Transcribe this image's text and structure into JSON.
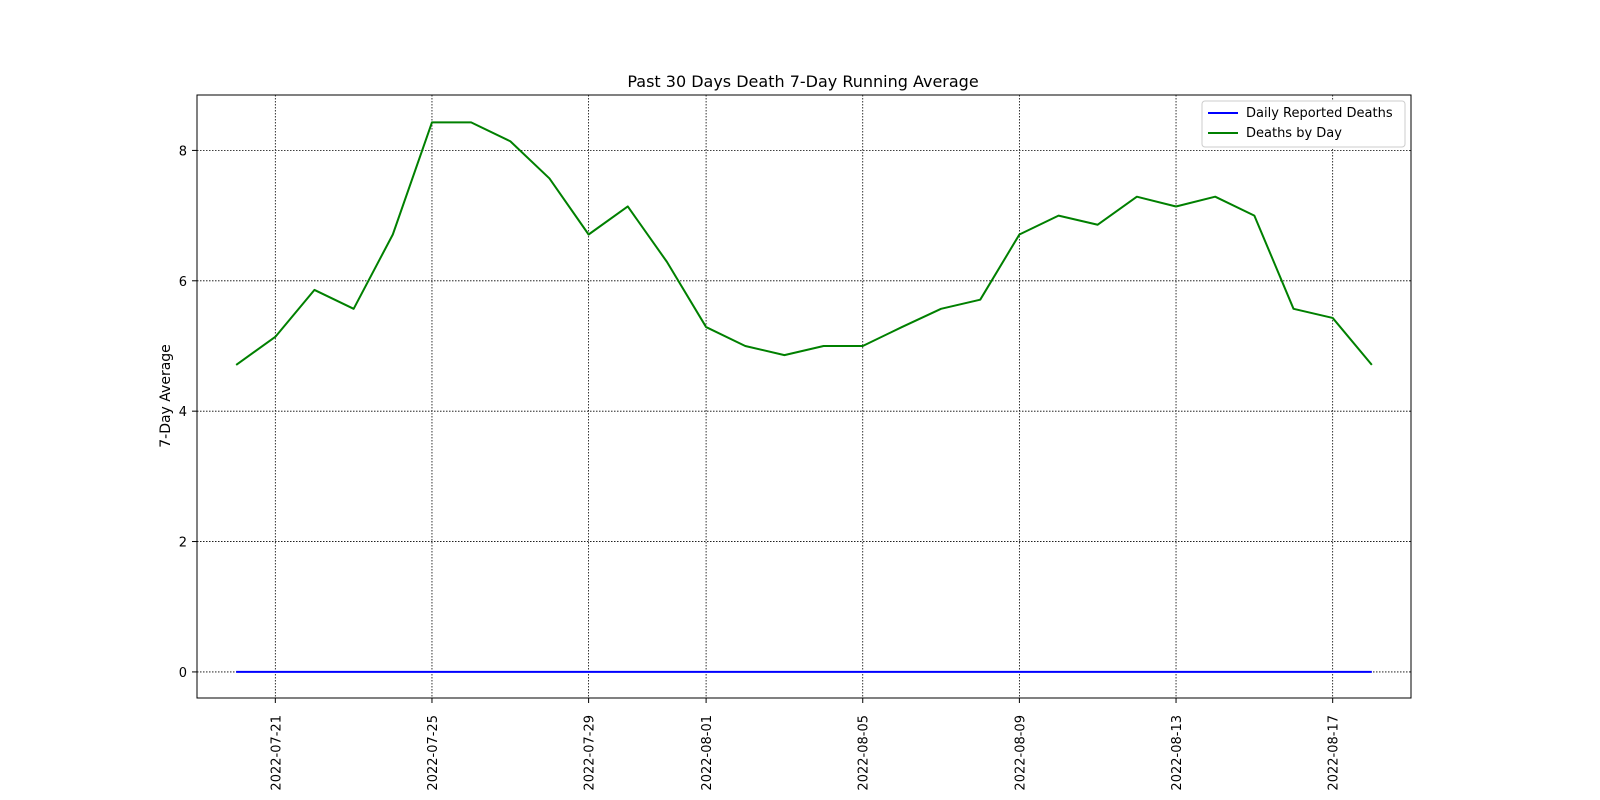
{
  "chart_data": {
    "type": "line",
    "title": "Past 30 Days Death 7-Day Running Average",
    "xlabel": "",
    "ylabel": "7-Day Average",
    "x": [
      "2022-07-20",
      "2022-07-21",
      "2022-07-22",
      "2022-07-23",
      "2022-07-24",
      "2022-07-25",
      "2022-07-26",
      "2022-07-27",
      "2022-07-28",
      "2022-07-29",
      "2022-07-30",
      "2022-07-31",
      "2022-08-01",
      "2022-08-02",
      "2022-08-03",
      "2022-08-04",
      "2022-08-05",
      "2022-08-06",
      "2022-08-07",
      "2022-08-08",
      "2022-08-09",
      "2022-08-10",
      "2022-08-11",
      "2022-08-12",
      "2022-08-13",
      "2022-08-14",
      "2022-08-15",
      "2022-08-16",
      "2022-08-17",
      "2022-08-18"
    ],
    "xlim": [
      "2022-07-19",
      "2022-08-19"
    ],
    "xticks": [
      "2022-07-21",
      "2022-07-25",
      "2022-07-29",
      "2022-08-01",
      "2022-08-05",
      "2022-08-09",
      "2022-08-13",
      "2022-08-17"
    ],
    "ylim": [
      -0.4,
      8.85
    ],
    "yticks": [
      0,
      2,
      4,
      6,
      8
    ],
    "grid": true,
    "legend_position": "top-right",
    "series": [
      {
        "name": "Daily Reported Deaths",
        "color": "#0000ff",
        "values": [
          0,
          0,
          0,
          0,
          0,
          0,
          0,
          0,
          0,
          0,
          0,
          0,
          0,
          0,
          0,
          0,
          0,
          0,
          0,
          0,
          0,
          0,
          0,
          0,
          0,
          0,
          0,
          0,
          0,
          0
        ]
      },
      {
        "name": "Deaths by Day",
        "color": "#008000",
        "values": [
          4.71,
          5.14,
          5.86,
          5.57,
          6.71,
          8.43,
          8.43,
          8.14,
          7.57,
          6.71,
          7.14,
          6.29,
          5.29,
          5.0,
          4.86,
          5.0,
          5.0,
          5.29,
          5.57,
          5.71,
          6.71,
          7.0,
          6.86,
          7.29,
          7.14,
          7.29,
          7.0,
          5.57,
          5.43,
          4.71
        ]
      }
    ]
  }
}
